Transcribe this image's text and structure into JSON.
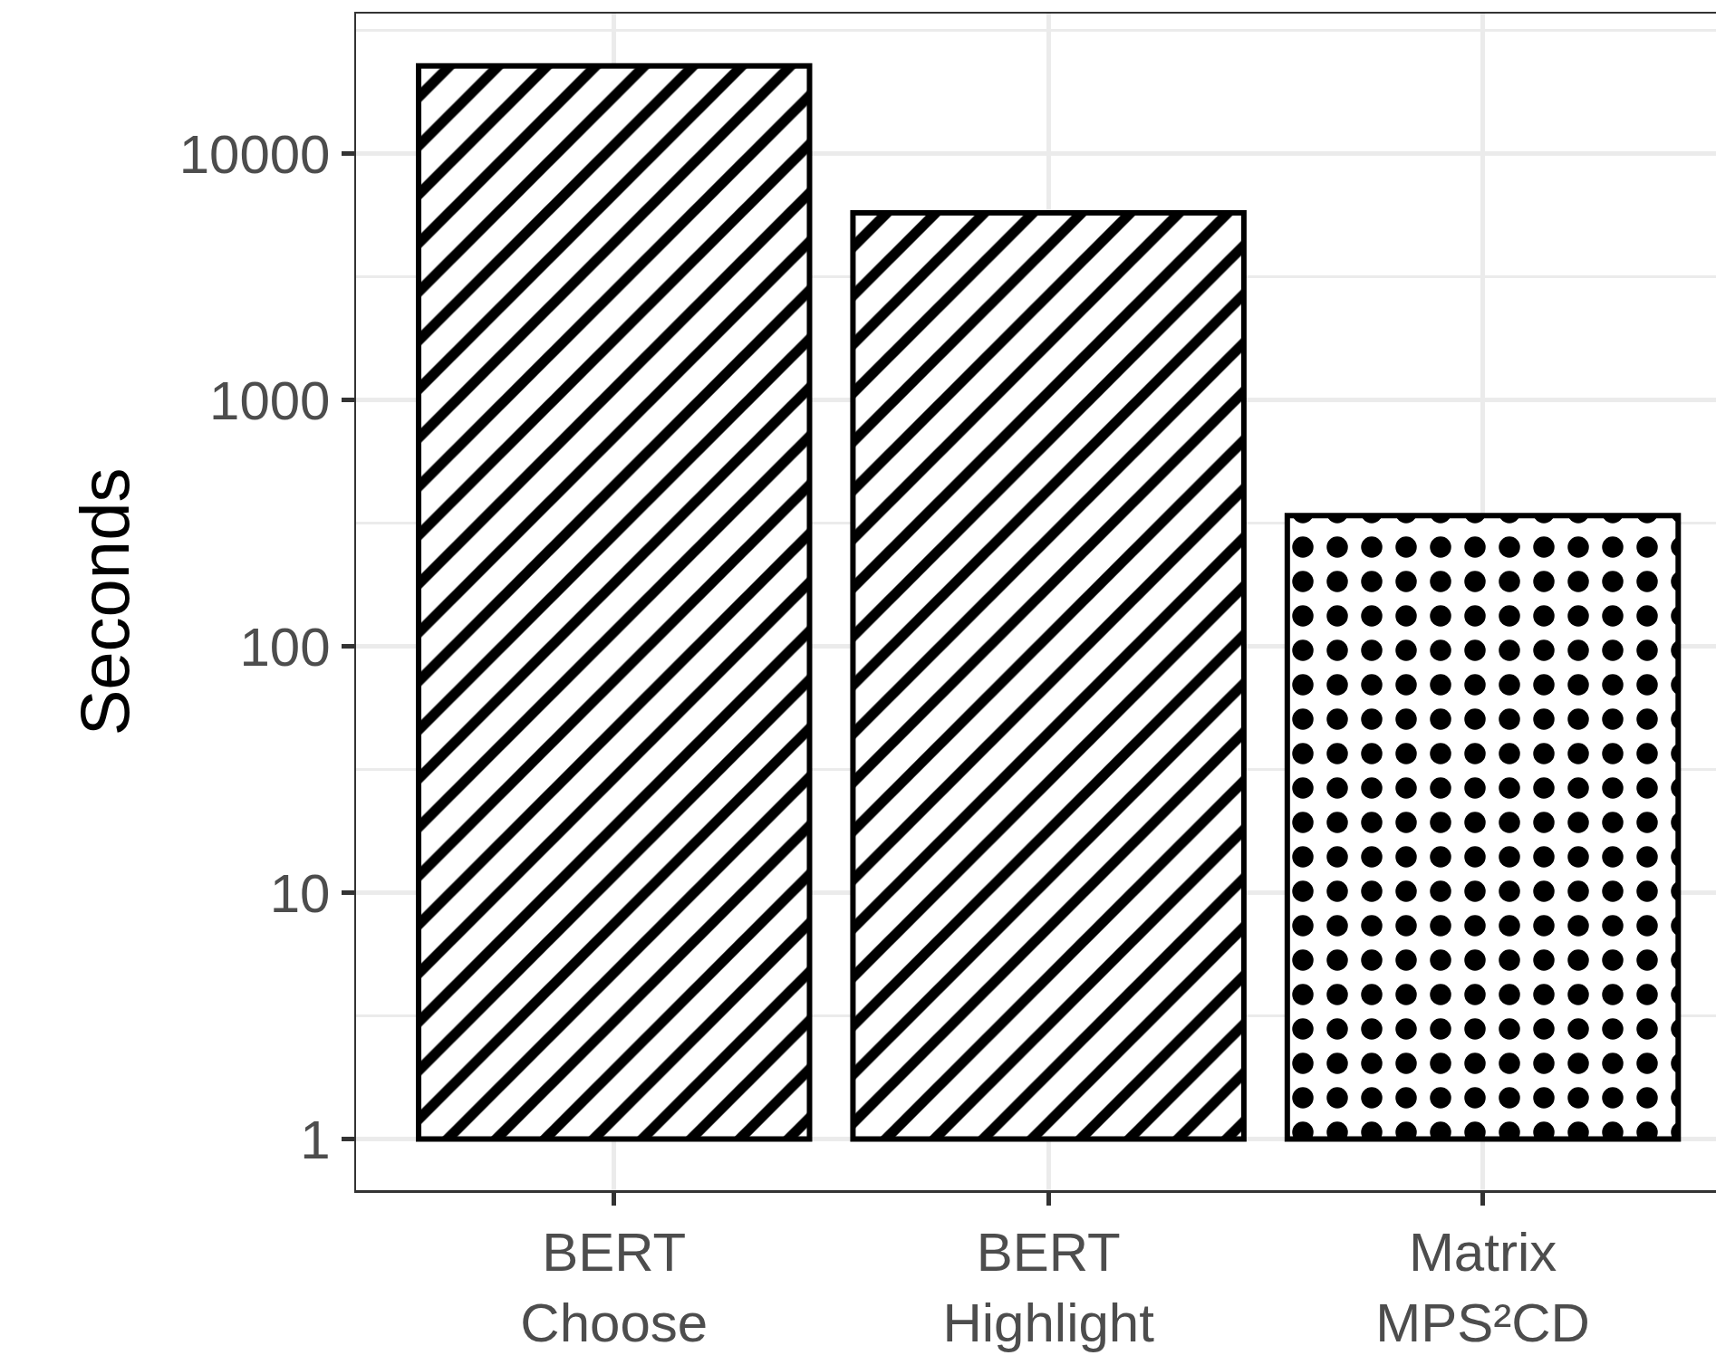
{
  "chart_data": {
    "type": "bar",
    "ylabel": "Seconds",
    "categories": [
      "BERT\nChoose",
      "BERT\nHighlight",
      "Matrix\nMPS²CD"
    ],
    "values": [
      22700,
      5750,
      338
    ],
    "base": [
      1,
      1,
      1
    ],
    "color": "#000000",
    "log": true,
    "ylim": [
      0.62,
      37000
    ],
    "yticks": [
      1,
      10,
      100,
      1000,
      10000
    ],
    "grid": true
  }
}
